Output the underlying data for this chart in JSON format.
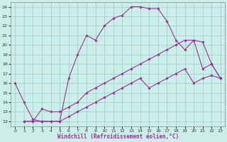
{
  "xlabel": "Windchill (Refroidissement éolien,°C)",
  "x_ticks": [
    0,
    1,
    2,
    3,
    4,
    5,
    6,
    7,
    8,
    9,
    10,
    11,
    12,
    13,
    14,
    15,
    16,
    17,
    18,
    19,
    20,
    21,
    22,
    23
  ],
  "y_ticks": [
    12,
    13,
    14,
    15,
    16,
    17,
    18,
    19,
    20,
    21,
    22,
    23,
    24
  ],
  "ylim": [
    11.5,
    24.5
  ],
  "xlim": [
    -0.5,
    23.5
  ],
  "bg_color": "#cceee8",
  "line_color": "#993399",
  "grid_color": "#99cccc",
  "line1_x": [
    0,
    1,
    2,
    3,
    4,
    5,
    6,
    7,
    8,
    9,
    10,
    11,
    12,
    13,
    14,
    15,
    16,
    17,
    18,
    19,
    20,
    21,
    22,
    23
  ],
  "line1_y": [
    16,
    14,
    12.2,
    12,
    12,
    12,
    16.5,
    19,
    21,
    20.5,
    22,
    22.8,
    23.1,
    24,
    24,
    23.8,
    23.8,
    22.5,
    20.5,
    19.5,
    20.5,
    17.5,
    18,
    16.5
  ],
  "line2_x": [
    1,
    2,
    3,
    4,
    5,
    6,
    7,
    8,
    9,
    10,
    11,
    12,
    13,
    14,
    15,
    16,
    17,
    18,
    19,
    20,
    21,
    22,
    23
  ],
  "line2_y": [
    12,
    12,
    13.3,
    13,
    13,
    13.5,
    14,
    15,
    15.5,
    16,
    16.5,
    17,
    17.5,
    18,
    18.5,
    19,
    19.5,
    20,
    20.5,
    20.5,
    20.3,
    18,
    16.5
  ],
  "line3_x": [
    1,
    2,
    3,
    4,
    5,
    6,
    7,
    8,
    9,
    10,
    11,
    12,
    13,
    14,
    15,
    16,
    17,
    18,
    19,
    20,
    21,
    22,
    23
  ],
  "line3_y": [
    12,
    12,
    12,
    12,
    12,
    12.5,
    13,
    13.5,
    14,
    14.5,
    15,
    15.5,
    16,
    16.5,
    15.5,
    16,
    16.5,
    17,
    17.5,
    16,
    16.5,
    16.8,
    16.5
  ]
}
